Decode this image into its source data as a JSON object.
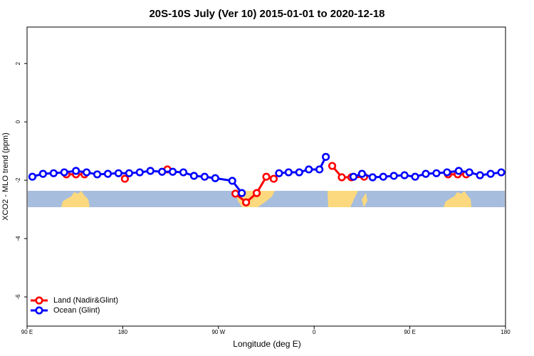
{
  "chart_data": {
    "type": "line",
    "title": "20S-10S July (Ver 10)   2015-01-01 to 2020-12-18",
    "xlabel": "Longitude (deg E)",
    "ylabel": "XCO2 - MLO trend (ppm)",
    "xlim": [
      90,
      540
    ],
    "xticks": [
      {
        "value": 90,
        "label": "90 E"
      },
      180,
      {
        "value": 270,
        "label": "90 W"
      },
      {
        "value": 360,
        "label": "0"
      },
      {
        "value": 450,
        "label": "90 E"
      },
      {
        "value": 540,
        "label": "180"
      }
    ],
    "ylim": [
      -7,
      3.25
    ],
    "yticks": [
      -6,
      -4,
      -2,
      0,
      2
    ],
    "legend": "bottom-left",
    "series": [
      {
        "name": "Land (Nadir&Glint)",
        "color": "#ff0000",
        "x": [
          127,
          136,
          144,
          null,
          182,
          null,
          222,
          null,
          286,
          296,
          306,
          315,
          322,
          null,
          377,
          386,
          395,
          407,
          null,
          486,
          495,
          503
        ],
        "values": [
          -1.8,
          -1.8,
          -1.8,
          null,
          -1.95,
          null,
          -1.63,
          null,
          -2.46,
          -2.76,
          -2.44,
          -1.88,
          -1.95,
          null,
          -1.51,
          -1.9,
          -1.9,
          -1.88,
          null,
          -1.8,
          -1.8,
          -1.8
        ]
      },
      {
        "name": "Ocean (Glint)",
        "color": "#0000ff",
        "x": [
          95,
          105,
          115,
          125,
          136,
          146,
          156,
          166,
          176,
          186,
          196,
          206,
          217,
          227,
          237,
          247,
          257,
          267,
          283,
          292,
          null,
          327,
          336,
          346,
          355,
          365,
          371,
          null,
          397,
          405,
          415,
          425,
          435,
          445,
          455,
          465,
          475,
          485,
          496,
          506,
          516,
          526,
          536
        ],
        "values": [
          -1.88,
          -1.78,
          -1.76,
          -1.73,
          -1.68,
          -1.73,
          -1.8,
          -1.78,
          -1.76,
          -1.76,
          -1.73,
          -1.68,
          -1.71,
          -1.71,
          -1.73,
          -1.85,
          -1.88,
          -1.93,
          -2.02,
          -2.44,
          null,
          -1.76,
          -1.73,
          -1.73,
          -1.63,
          -1.63,
          -1.2,
          null,
          -1.88,
          -1.78,
          -1.9,
          -1.88,
          -1.85,
          -1.83,
          -1.88,
          -1.78,
          -1.76,
          -1.73,
          -1.68,
          -1.73,
          -1.83,
          -1.78,
          -1.73
        ]
      }
    ]
  }
}
